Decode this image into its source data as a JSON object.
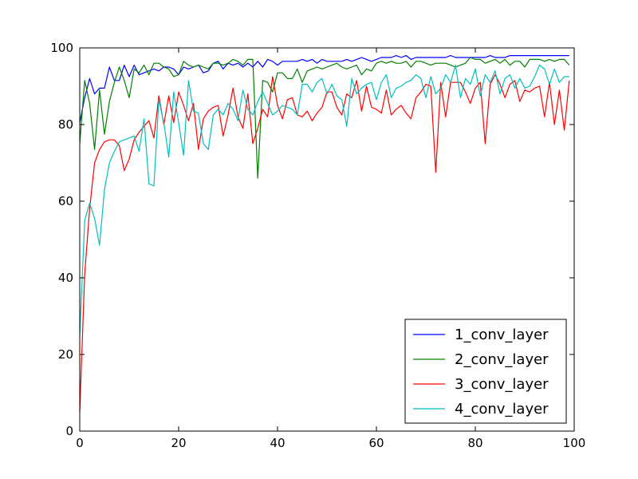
{
  "chart_data": {
    "type": "line",
    "title": "",
    "xlabel": "",
    "ylabel": "",
    "xlim": [
      0,
      100
    ],
    "ylim": [
      0,
      100
    ],
    "x_ticks": [
      0,
      20,
      40,
      60,
      80,
      100
    ],
    "y_ticks": [
      0,
      20,
      40,
      60,
      80,
      100
    ],
    "grid": false,
    "legend_position": "lower-right",
    "x": [
      0,
      1,
      2,
      3,
      4,
      5,
      6,
      7,
      8,
      9,
      10,
      11,
      12,
      13,
      14,
      15,
      16,
      17,
      18,
      19,
      20,
      21,
      22,
      23,
      24,
      25,
      26,
      27,
      28,
      29,
      30,
      31,
      32,
      33,
      34,
      35,
      36,
      37,
      38,
      39,
      40,
      41,
      42,
      43,
      44,
      45,
      46,
      47,
      48,
      49,
      50,
      51,
      52,
      53,
      54,
      55,
      56,
      57,
      58,
      59,
      60,
      61,
      62,
      63,
      64,
      65,
      66,
      67,
      68,
      69,
      70,
      71,
      72,
      73,
      74,
      75,
      76,
      77,
      78,
      79,
      80,
      81,
      82,
      83,
      84,
      85,
      86,
      87,
      88,
      89,
      90,
      91,
      92,
      93,
      94,
      95,
      96,
      97,
      98,
      99
    ],
    "series": [
      {
        "name": "1_conv_layer",
        "color": "#0000ff",
        "values": [
          80.5,
          87.0,
          92.0,
          88.0,
          89.5,
          89.5,
          95.0,
          91.5,
          91.5,
          95.5,
          92.5,
          95.5,
          93.0,
          93.5,
          94.0,
          94.5,
          94.0,
          95.0,
          95.0,
          94.5,
          93.0,
          95.0,
          94.5,
          95.0,
          95.5,
          93.5,
          94.0,
          96.0,
          96.5,
          94.5,
          96.0,
          95.5,
          96.0,
          95.0,
          96.0,
          95.0,
          96.5,
          95.0,
          97.0,
          96.5,
          95.5,
          96.5,
          96.5,
          96.5,
          96.5,
          97.0,
          96.5,
          97.0,
          96.0,
          97.0,
          96.5,
          96.5,
          96.5,
          96.5,
          97.0,
          96.5,
          97.0,
          97.5,
          97.0,
          96.5,
          97.0,
          97.5,
          97.5,
          97.5,
          98.0,
          97.5,
          98.0,
          97.0,
          97.5,
          97.5,
          97.5,
          97.5,
          97.5,
          97.5,
          97.5,
          98.0,
          97.5,
          97.5,
          97.5,
          97.5,
          97.5,
          97.5,
          97.5,
          98.0,
          97.5,
          97.5,
          97.5,
          98.0,
          98.0,
          98.0,
          98.0,
          98.0,
          98.0,
          98.0,
          98.0,
          98.0,
          98.0,
          98.0,
          98.0,
          98.0
        ]
      },
      {
        "name": "2_conv_layer",
        "color": "#008000",
        "values": [
          75.0,
          91.5,
          85.5,
          73.5,
          89.0,
          77.5,
          86.0,
          91.0,
          95.0,
          91.5,
          87.0,
          94.5,
          93.5,
          95.5,
          93.0,
          96.0,
          96.0,
          95.0,
          94.5,
          92.5,
          93.0,
          96.5,
          95.5,
          95.0,
          95.5,
          95.0,
          94.5,
          96.0,
          96.0,
          95.5,
          96.0,
          97.0,
          96.5,
          95.5,
          97.0,
          97.0,
          66.0,
          91.5,
          91.0,
          88.5,
          93.5,
          93.5,
          92.0,
          92.0,
          94.5,
          91.0,
          94.0,
          94.5,
          95.0,
          94.5,
          95.0,
          95.5,
          96.0,
          95.0,
          94.5,
          95.0,
          95.5,
          93.0,
          94.5,
          94.0,
          96.0,
          96.5,
          96.0,
          96.5,
          96.0,
          96.0,
          96.5,
          95.0,
          96.5,
          96.5,
          96.0,
          95.5,
          96.0,
          96.0,
          96.0,
          95.5,
          95.0,
          95.5,
          96.0,
          97.5,
          97.0,
          97.0,
          96.0,
          96.5,
          97.0,
          96.0,
          97.0,
          95.5,
          96.5,
          96.5,
          95.0,
          97.0,
          97.0,
          97.0,
          96.5,
          97.0,
          96.5,
          97.0,
          97.0,
          95.5
        ]
      },
      {
        "name": "3_conv_layer",
        "color": "#ff0000",
        "values": [
          5.0,
          41.0,
          58.0,
          70.0,
          73.5,
          75.5,
          76.0,
          76.0,
          74.5,
          68.0,
          71.0,
          76.0,
          78.0,
          79.5,
          81.0,
          76.5,
          87.5,
          80.0,
          87.5,
          80.5,
          88.5,
          85.0,
          81.0,
          85.5,
          73.5,
          81.5,
          83.5,
          84.5,
          85.0,
          77.0,
          82.5,
          89.5,
          82.0,
          79.0,
          88.0,
          75.0,
          79.0,
          84.0,
          82.0,
          92.5,
          85.0,
          81.5,
          86.5,
          87.0,
          82.5,
          82.0,
          83.5,
          81.0,
          83.0,
          84.5,
          88.5,
          88.5,
          84.5,
          82.5,
          88.0,
          87.0,
          91.5,
          83.5,
          90.0,
          84.5,
          84.0,
          83.0,
          89.0,
          82.5,
          84.0,
          85.0,
          83.0,
          81.5,
          87.0,
          88.5,
          90.5,
          90.0,
          67.5,
          91.0,
          82.0,
          91.0,
          91.0,
          91.0,
          88.5,
          85.5,
          89.5,
          91.0,
          75.0,
          90.5,
          93.0,
          90.5,
          87.0,
          90.5,
          91.5,
          86.0,
          89.0,
          88.5,
          89.5,
          90.0,
          82.0,
          91.0,
          80.0,
          89.0,
          78.5,
          91.5
        ]
      },
      {
        "name": "4_conv_layer",
        "color": "#00bfbf",
        "values": [
          25.0,
          55.0,
          59.5,
          55.5,
          48.5,
          63.0,
          70.0,
          73.0,
          75.5,
          76.0,
          76.5,
          77.0,
          73.0,
          81.5,
          64.5,
          64.0,
          86.5,
          80.5,
          71.5,
          88.5,
          80.5,
          72.0,
          91.5,
          83.5,
          83.0,
          75.0,
          73.5,
          82.5,
          84.0,
          82.5,
          85.5,
          84.0,
          81.0,
          89.0,
          84.0,
          82.5,
          86.0,
          88.5,
          85.5,
          82.5,
          83.5,
          85.0,
          84.5,
          84.0,
          82.5,
          90.5,
          90.5,
          88.5,
          91.0,
          92.0,
          88.0,
          90.5,
          87.5,
          86.5,
          79.5,
          92.0,
          88.0,
          89.5,
          90.5,
          91.0,
          86.5,
          91.0,
          93.0,
          87.0,
          89.5,
          90.0,
          91.0,
          91.5,
          93.0,
          92.0,
          87.0,
          92.5,
          88.0,
          89.5,
          93.0,
          91.0,
          95.5,
          87.0,
          92.0,
          90.5,
          94.5,
          87.5,
          93.0,
          91.0,
          94.0,
          88.0,
          92.0,
          93.0,
          89.5,
          92.0,
          89.5,
          90.0,
          92.5,
          95.5,
          94.5,
          90.5,
          94.5,
          91.0,
          92.5,
          92.5
        ]
      }
    ]
  }
}
